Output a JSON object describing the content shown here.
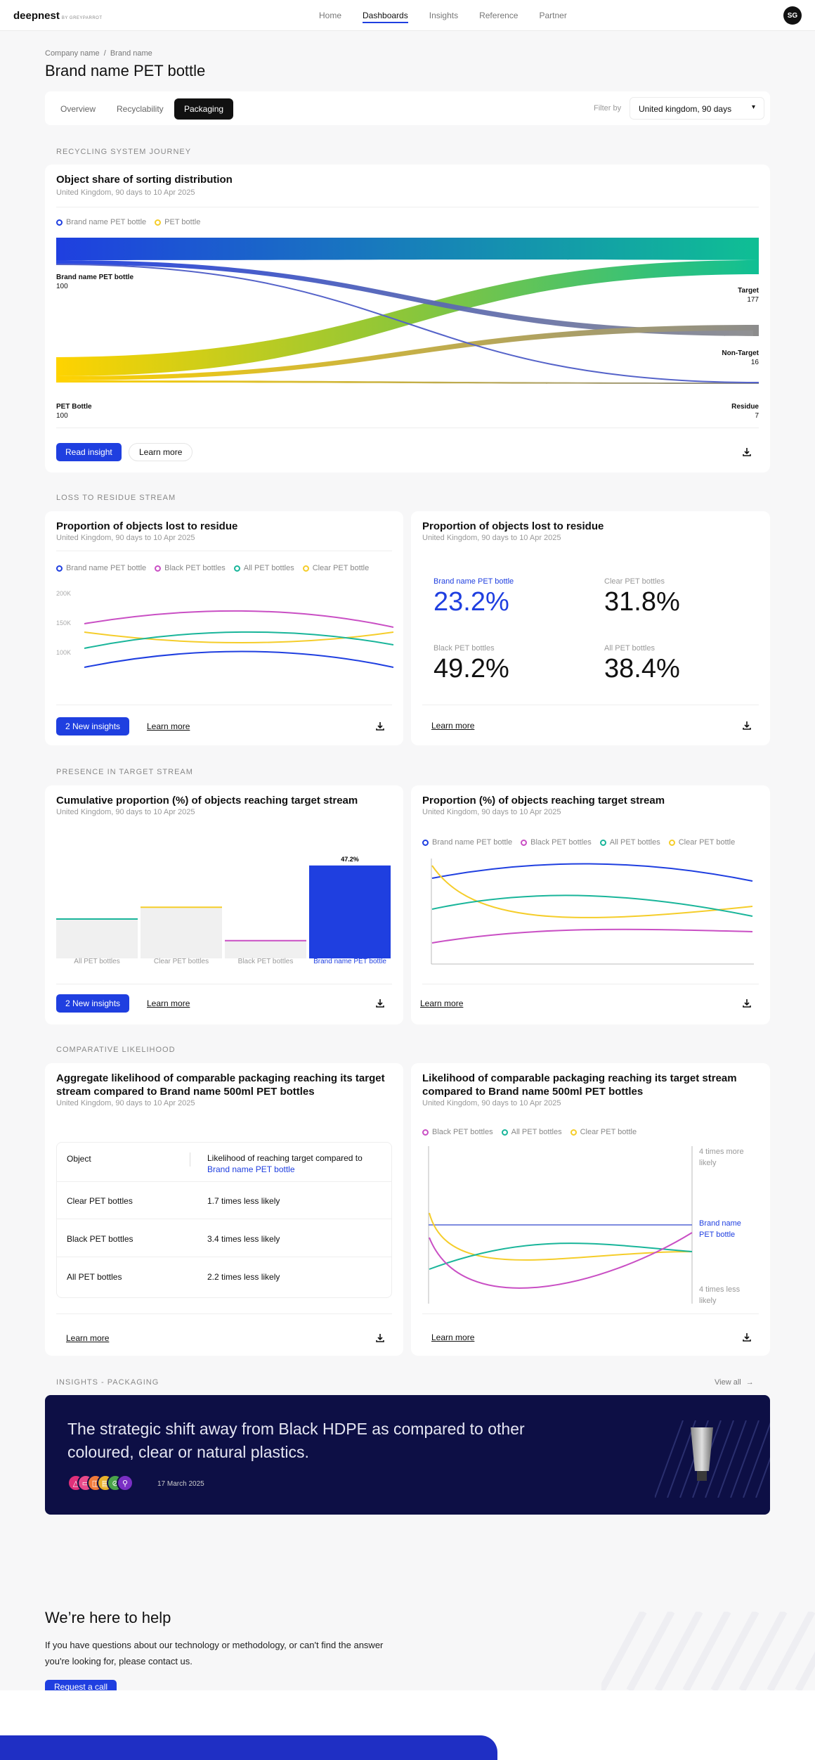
{
  "nav": {
    "logo": "deepnest",
    "logo_sub": "BY GREYPARROT",
    "links": [
      "Home",
      "Dashboards",
      "Insights",
      "Reference",
      "Partner"
    ],
    "active": "Dashboards",
    "avatar": "SG"
  },
  "breadcrumb": {
    "company": "Company name",
    "sep": "/",
    "brand": "Brand name"
  },
  "page_title": "Brand name PET bottle",
  "tabs": [
    "Overview",
    "Recyclability",
    "Packaging"
  ],
  "active_tab": "Packaging",
  "filter": {
    "label": "Filter by",
    "value": "United kingdom, 90 days"
  },
  "sections": {
    "journey": "RECYCLING SYSTEM JOURNEY",
    "loss": "LOSS TO RESIDUE STREAM",
    "presence": "PRESENCE IN TARGET STREAM",
    "comparative": "COMPARATIVE LIKELIHOOD",
    "insights": "INSIGHTS - PACKAGING"
  },
  "sankey": {
    "title": "Object share of sorting distribution",
    "subtitle": "United Kingdom, 90 days to 10 Apr 2025",
    "legend": [
      "Brand name PET bottle",
      "PET bottle"
    ],
    "sources": [
      {
        "name": "Brand name PET bottle",
        "value": "100"
      },
      {
        "name": "PET Bottle",
        "value": "100"
      }
    ],
    "targets": [
      {
        "name": "Target",
        "value": "177"
      },
      {
        "name": "Non-Target",
        "value": "16"
      },
      {
        "name": "Residue",
        "value": "7"
      }
    ],
    "read_insight": "Read insight",
    "learn_more": "Learn more"
  },
  "residue_chart": {
    "title": "Proportion of objects lost to residue",
    "subtitle": "United Kingdom, 90 days to 10 Apr 2025",
    "legend": [
      "Brand name PET bottle",
      "Black PET bottles",
      "All PET bottles",
      "Clear PET bottle"
    ],
    "yticks": [
      "200K",
      "150K",
      "100K"
    ],
    "button": "2 New insights",
    "learn_more": "Learn more"
  },
  "residue_stats": {
    "title": "Proportion of objects lost to residue",
    "subtitle": "United Kingdom, 90 days to 10 Apr 2025",
    "stats": [
      {
        "label": "Brand name PET bottle",
        "value": "23.2%"
      },
      {
        "label": "Clear PET bottles",
        "value": "31.8%"
      },
      {
        "label": "Black PET bottles",
        "value": "49.2%"
      },
      {
        "label": "All PET bottles",
        "value": "38.4%"
      }
    ],
    "learn_more": "Learn more"
  },
  "cumulative": {
    "title": "Cumulative proportion (%) of objects reaching target stream",
    "subtitle": "United Kingdom, 90 days to 10 Apr 2025",
    "bar_label": "47.2%",
    "button": "2 New insights",
    "learn_more": "Learn more"
  },
  "reaching": {
    "title": "Proportion (%) of objects reaching target stream",
    "subtitle": "United Kingdom, 90 days to 10 Apr 2025",
    "legend": [
      "Brand name PET bottle",
      "Black PET bottles",
      "All PET bottles",
      "Clear PET bottle"
    ],
    "learn_more": "Learn more"
  },
  "aggregate": {
    "title": "Aggregate likelihood of comparable packaging reaching its target stream compared to Brand name 500ml PET bottles",
    "subtitle": "United Kingdom, 90 days to 10 Apr 2025",
    "col1": "Object",
    "col2": "Likelihood of reaching target compared to",
    "col2_highlight": "Brand name PET bottle",
    "rows": [
      {
        "object": "Clear PET bottles",
        "value": "1.7 times less likely"
      },
      {
        "object": "Black PET bottles",
        "value": "3.4 times less likely"
      },
      {
        "object": "All PET bottles",
        "value": "2.2 times less likely"
      }
    ],
    "learn_more": "Learn more"
  },
  "likelihood": {
    "title": "Likelihood of comparable packaging reaching its target stream compared to Brand name 500ml PET bottles",
    "subtitle": "United Kingdom, 90 days to 10 Apr 2025",
    "legend": [
      "Black PET bottles",
      "All PET bottles",
      "Clear PET bottle"
    ],
    "top_label": "4 times more likely",
    "mid_label": "Brand name PET bottle",
    "bottom_label": "4 times less likely",
    "learn_more": "Learn more"
  },
  "insights": {
    "view_all": "View all",
    "headline": "The strategic shift away from Black HDPE as compared to other coloured, clear or natural plastics.",
    "date": "17 March  2025"
  },
  "help": {
    "title": "We’re here to help",
    "text": "If you have questions about our technology or methodology, or can't find the answer you're looking for, please contact us.",
    "button": "Request a call"
  },
  "colors": {
    "brand": "#1f3fe0",
    "black_pet": "#c94fc4",
    "all_pet": "#19b59a",
    "clear_pet": "#f5cd2a",
    "dark": "#0d0f45"
  },
  "chart_data": [
    {
      "type": "bar",
      "categories": [
        "All PET bottles",
        "Clear PET bottles",
        "Black PET bottles",
        "Brand name PET bottle"
      ],
      "values": [
        20,
        26,
        9,
        47.2
      ],
      "labels": [
        "",
        "",
        "",
        "47.2%"
      ],
      "ylim": [
        0,
        50
      ]
    }
  ]
}
